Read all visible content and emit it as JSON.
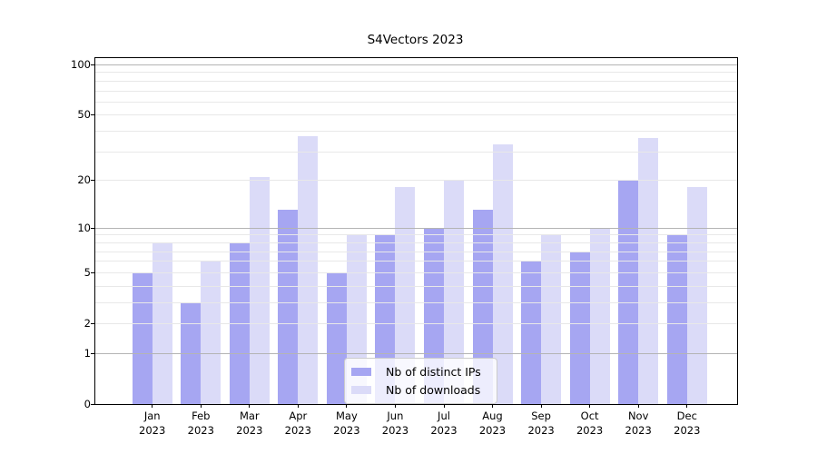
{
  "title": "S4Vectors 2023",
  "chart_data": {
    "type": "bar",
    "title": "S4Vectors 2023",
    "categories": [
      "Jan",
      "Feb",
      "Mar",
      "Apr",
      "May",
      "Jun",
      "Jul",
      "Aug",
      "Sep",
      "Oct",
      "Nov",
      "Dec"
    ],
    "category_year": "2023",
    "series": [
      {
        "name": "Nb of distinct IPs",
        "color": "#a6a6f2",
        "values": [
          5,
          3,
          8,
          13,
          5,
          9,
          10,
          13,
          6,
          7,
          20,
          9
        ]
      },
      {
        "name": "Nb of downloads",
        "color": "#dbdbf8",
        "values": [
          8,
          6,
          21,
          37,
          9,
          18,
          20,
          33,
          9,
          10,
          36,
          18
        ]
      }
    ],
    "xlabel": "",
    "ylabel": "",
    "yscale": "log1p",
    "ylim": [
      0,
      110
    ],
    "y_ticks": [
      0,
      1,
      2,
      5,
      10,
      20,
      50,
      100
    ],
    "y_minor_gridlines": [
      3,
      4,
      6,
      7,
      8,
      9,
      30,
      40,
      60,
      70,
      80,
      90
    ],
    "grid": true,
    "legend_position": "lower center"
  },
  "legend": {
    "items": [
      {
        "label": "Nb of distinct IPs",
        "color": "#a6a6f2"
      },
      {
        "label": "Nb of downloads",
        "color": "#dbdbf8"
      }
    ]
  },
  "colors": {
    "bar_distinct_ips": "#a6a6f2",
    "bar_downloads": "#dbdbf8",
    "gridline_power10": "#b4b4b4",
    "gridline_minor": "#e8e8e8",
    "axis": "#000000",
    "background": "#ffffff"
  }
}
